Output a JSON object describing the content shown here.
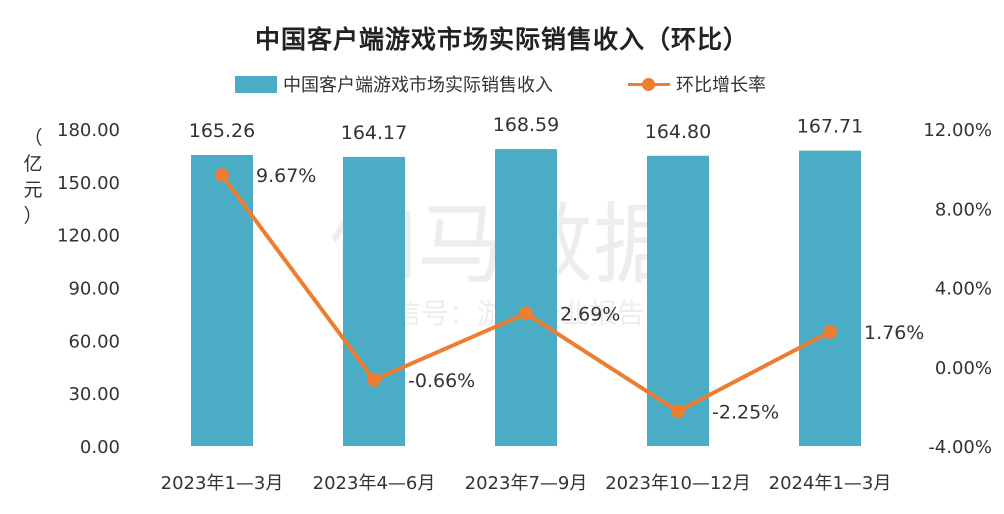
{
  "watermark": {
    "main": "伽马数据",
    "sub": "微信号：游戏产业报告"
  },
  "chart_data": {
    "type": "bar",
    "title": "中国客户端游戏市场实际销售收入（环比）",
    "ylabel_chars": [
      "（",
      "亿",
      "元",
      "）"
    ],
    "categories": [
      "2023年1—3月",
      "2023年4—6月",
      "2023年7—9月",
      "2023年10—12月",
      "2024年1—3月"
    ],
    "y_left": {
      "min": 0,
      "max": 180,
      "step": 30,
      "tick_labels": [
        "0.00",
        "30.00",
        "60.00",
        "90.00",
        "120.00",
        "150.00",
        "180.00"
      ]
    },
    "y_right": {
      "min": -4,
      "max": 12,
      "step": 4,
      "tick_labels": [
        "-4.00%",
        "0.00%",
        "4.00%",
        "8.00%",
        "12.00%"
      ]
    },
    "grid": false,
    "legend_position": "top-center",
    "series": [
      {
        "name": "中国客户端游戏市场实际销售收入",
        "type": "bar",
        "axis": "left",
        "color": "#4BACC6",
        "values": [
          165.26,
          164.17,
          168.59,
          164.8,
          167.71
        ],
        "labels": [
          "165.26",
          "164.17",
          "168.59",
          "164.80",
          "167.71"
        ]
      },
      {
        "name": "环比增长率",
        "type": "line",
        "axis": "right",
        "color": "#ED7D31",
        "values": [
          9.67,
          -0.66,
          2.69,
          -2.25,
          1.76
        ],
        "labels": [
          "9.67%",
          "-0.66%",
          "2.69%",
          "-2.25%",
          "1.76%"
        ]
      }
    ]
  }
}
